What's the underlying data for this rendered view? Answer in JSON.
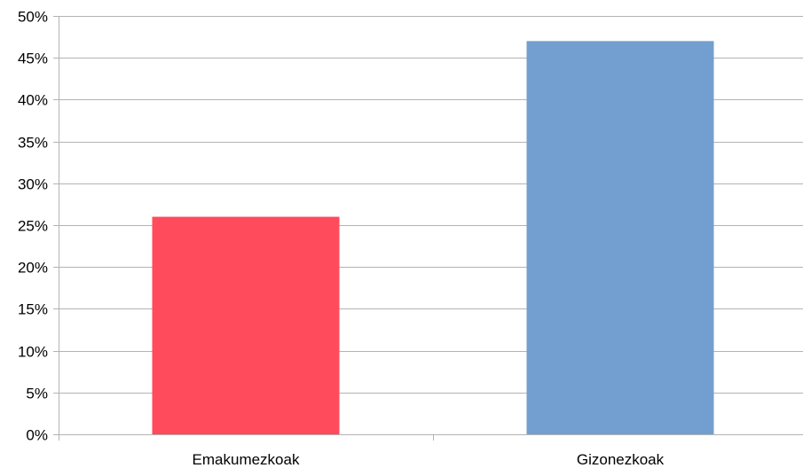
{
  "chart_data": {
    "type": "bar",
    "categories": [
      "Emakumezkoak",
      "Gizonezkoak"
    ],
    "values": [
      26,
      47
    ],
    "bar_colors": [
      "#ff4b5b",
      "#729fcf"
    ],
    "title": "",
    "xlabel": "",
    "ylabel": "",
    "ylim": [
      0,
      50
    ],
    "y_tick_step": 5,
    "y_tick_format": "percent",
    "y_tick_labels": [
      "0%",
      "5%",
      "10%",
      "15%",
      "20%",
      "25%",
      "30%",
      "35%",
      "40%",
      "45%",
      "50%"
    ],
    "grid": true,
    "legend": "none"
  }
}
